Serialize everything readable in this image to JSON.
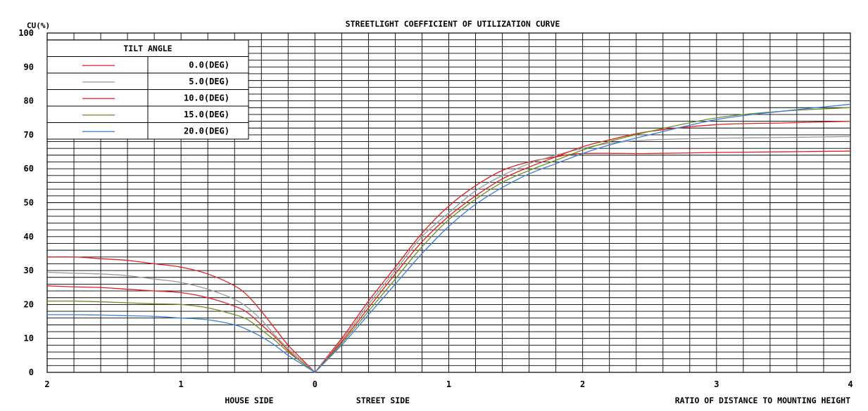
{
  "chart_data": {
    "type": "line",
    "title": "STREETLIGHT COEFFICIENT OF UTILIZATION CURVE",
    "ylabel": "CU(%)",
    "xlabel": "RATIO OF DISTANCE TO MOUNTING HEIGHT",
    "x_left_label": "HOUSE SIDE",
    "x_right_label": "STREET SIDE",
    "x_tick_labels": [
      "2",
      "1",
      "0",
      "1",
      "2",
      "3",
      "4"
    ],
    "x_tick_values": [
      -2,
      -1,
      0,
      1,
      2,
      3,
      4
    ],
    "y_tick_labels": [
      "0",
      "10",
      "20",
      "30",
      "40",
      "50",
      "60",
      "70",
      "80",
      "90",
      "100"
    ],
    "y_tick_values": [
      0,
      10,
      20,
      30,
      40,
      50,
      60,
      70,
      80,
      90,
      100
    ],
    "xlim": [
      -2,
      4
    ],
    "ylim": [
      0,
      100
    ],
    "grid": true,
    "legend": {
      "title": "TILT ANGLE",
      "placement": "top-left"
    },
    "series": [
      {
        "name": "0.0(DEG)",
        "color": "#e02020",
        "x": [
          -2,
          -1.8,
          -1.6,
          -1.4,
          -1.2,
          -1,
          -0.8,
          -0.6,
          -0.5,
          -0.4,
          -0.3,
          -0.2,
          -0.1,
          0,
          0.2,
          0.4,
          0.6,
          0.8,
          1,
          1.2,
          1.4,
          1.6,
          1.8,
          2,
          2.5,
          3,
          3.5,
          4
        ],
        "y": [
          34,
          34,
          33.5,
          33,
          32,
          31,
          29,
          25.5,
          22.5,
          18,
          13,
          8,
          4,
          0,
          10,
          21,
          31,
          41,
          49,
          55,
          59.5,
          62,
          63.5,
          64.5,
          64.5,
          64.8,
          65,
          65.2
        ]
      },
      {
        "name": "5.0(DEG)",
        "color": "#999999",
        "x": [
          -2,
          -1.8,
          -1.6,
          -1.4,
          -1.2,
          -1,
          -0.8,
          -0.6,
          -0.5,
          -0.4,
          -0.3,
          -0.2,
          -0.1,
          0,
          0.2,
          0.4,
          0.6,
          0.8,
          1,
          1.2,
          1.4,
          1.6,
          1.8,
          2,
          2.2,
          2.5,
          3,
          3.5,
          4
        ],
        "y": [
          29.5,
          29.2,
          29,
          28.5,
          27.5,
          26.5,
          24.5,
          21.5,
          19,
          15.5,
          11,
          7,
          3.5,
          0,
          9.5,
          20,
          30,
          40,
          47,
          53.5,
          58,
          61.5,
          64,
          66,
          67.5,
          68.5,
          69,
          69.2,
          69.5
        ]
      },
      {
        "name": "10.0(DEG)",
        "color": "#e02020",
        "x": [
          -2,
          -1.8,
          -1.6,
          -1.4,
          -1.2,
          -1,
          -0.8,
          -0.6,
          -0.5,
          -0.4,
          -0.3,
          -0.2,
          -0.1,
          0,
          0.2,
          0.4,
          0.6,
          0.8,
          1,
          1.2,
          1.4,
          1.6,
          1.8,
          2,
          2.2,
          2.5,
          3,
          3.5,
          4
        ],
        "y": [
          25.5,
          25.2,
          25,
          24.5,
          24,
          23.5,
          22,
          19.5,
          17.5,
          14,
          10.5,
          6.5,
          3,
          0,
          9,
          19,
          29,
          38.5,
          46,
          52,
          57,
          60.5,
          63.5,
          66.5,
          68.5,
          71,
          73,
          73.5,
          74
        ]
      },
      {
        "name": "15.0(DEG)",
        "color": "#6b8e23",
        "x": [
          -2,
          -1.8,
          -1.6,
          -1.4,
          -1.2,
          -1,
          -0.8,
          -0.6,
          -0.5,
          -0.4,
          -0.3,
          -0.2,
          -0.1,
          0,
          0.2,
          0.4,
          0.6,
          0.8,
          1,
          1.2,
          1.4,
          1.6,
          1.8,
          2,
          2.2,
          2.5,
          3,
          3.5,
          4
        ],
        "y": [
          21,
          21,
          20.8,
          20.5,
          20.2,
          20,
          19,
          17,
          15.5,
          12.5,
          9.5,
          6,
          3,
          0,
          8.5,
          18,
          27.5,
          37,
          45,
          51,
          56,
          59.5,
          62.5,
          65.5,
          68,
          71,
          75,
          77,
          78
        ]
      },
      {
        "name": "20.0(DEG)",
        "color": "#3a7be0",
        "x": [
          -2,
          -1.8,
          -1.6,
          -1.4,
          -1.2,
          -1,
          -0.8,
          -0.6,
          -0.5,
          -0.4,
          -0.3,
          -0.2,
          -0.1,
          0,
          0.2,
          0.4,
          0.6,
          0.8,
          1,
          1.2,
          1.4,
          1.6,
          1.8,
          2,
          2.2,
          2.5,
          3,
          3.5,
          4
        ],
        "y": [
          17,
          17,
          16.9,
          16.7,
          16.5,
          16,
          15.5,
          14,
          12.5,
          10.5,
          8,
          5,
          2.5,
          0,
          8,
          17,
          26,
          35,
          43,
          49.5,
          54.5,
          58.5,
          61.5,
          64.5,
          67,
          70,
          74.5,
          77,
          79
        ]
      }
    ]
  }
}
